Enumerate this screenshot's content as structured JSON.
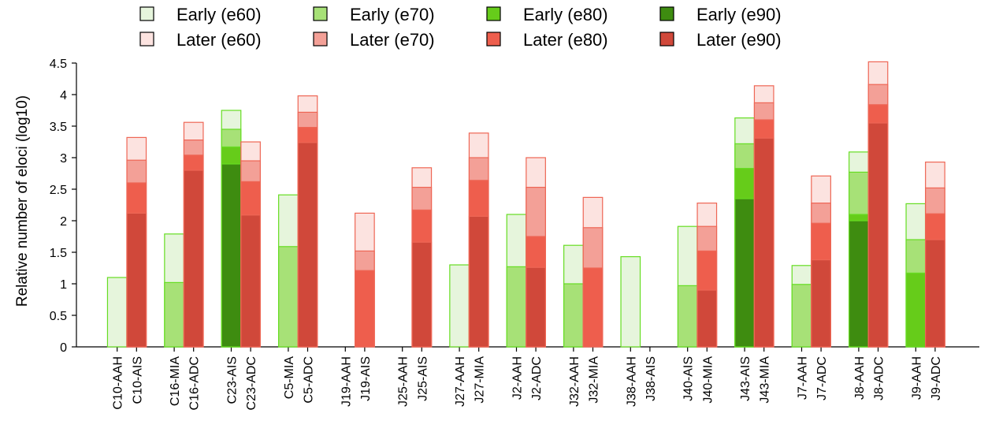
{
  "chart_data": {
    "type": "bar",
    "stacked": "overlapping cumulative thresholds, drawn back-to-front (e60 tallest behind)",
    "ylabel": "Relative number of eloci (log10)",
    "ylim": [
      0,
      4.5
    ],
    "yticks": [
      "0",
      "0.5",
      "1",
      "1.5",
      "2",
      "2.5",
      "3",
      "3.5",
      "4",
      "4.5"
    ],
    "legend": {
      "placement": "top",
      "entries": [
        {
          "label": "Early (e60)",
          "color": "#e6f5dc"
        },
        {
          "label": "Early (e70)",
          "color": "#a7e177"
        },
        {
          "label": "Early (e80)",
          "color": "#66cc1a"
        },
        {
          "label": "Early (e90)",
          "color": "#3e8c10"
        },
        {
          "label": "Later (e60)",
          "color": "#fce3e0"
        },
        {
          "label": "Later (e70)",
          "color": "#f3a097"
        },
        {
          "label": "Later (e80)",
          "color": "#ee5e4d"
        },
        {
          "label": "Later (e90)",
          "color": "#d0483a"
        }
      ]
    },
    "early_border_color": "#66dd22",
    "later_border_color": "#ee6655",
    "groups": [
      {
        "bars": [
          {
            "label": "C10-AAH",
            "kind": "early",
            "e60": 1.1,
            "e70": null,
            "e80": null,
            "e90": null
          },
          {
            "label": "C10-AIS",
            "kind": "later",
            "e60": 3.32,
            "e70": 2.96,
            "e80": 2.6,
            "e90": 2.12
          }
        ]
      },
      {
        "bars": [
          {
            "label": "C16-MIA",
            "kind": "early",
            "e60": 1.79,
            "e70": 1.02,
            "e80": null,
            "e90": null
          },
          {
            "label": "C16-ADC",
            "kind": "later",
            "e60": 3.56,
            "e70": 3.28,
            "e80": 3.04,
            "e90": 2.8
          }
        ]
      },
      {
        "bars": [
          {
            "label": "C23-AIS",
            "kind": "early",
            "e60": 3.75,
            "e70": 3.45,
            "e80": 3.17,
            "e90": 2.9
          },
          {
            "label": "C23-ADC",
            "kind": "later",
            "e60": 3.25,
            "e70": 2.95,
            "e80": 2.62,
            "e90": 2.09
          }
        ]
      },
      {
        "bars": [
          {
            "label": "C5-MIA",
            "kind": "early",
            "e60": 2.41,
            "e70": 1.59,
            "e80": null,
            "e90": null
          },
          {
            "label": "C5-ADC",
            "kind": "later",
            "e60": 3.98,
            "e70": 3.72,
            "e80": 3.48,
            "e90": 3.24
          }
        ]
      },
      {
        "bars": [
          {
            "label": "J19-AAH",
            "kind": "early",
            "e60": null,
            "e70": null,
            "e80": null,
            "e90": null
          },
          {
            "label": "J19-AIS",
            "kind": "later",
            "e60": 2.12,
            "e70": 1.52,
            "e80": 1.21,
            "e90": null
          }
        ]
      },
      {
        "bars": [
          {
            "label": "J25-AAH",
            "kind": "early",
            "e60": null,
            "e70": null,
            "e80": null,
            "e90": null
          },
          {
            "label": "J25-AIS",
            "kind": "later",
            "e60": 2.84,
            "e70": 2.53,
            "e80": 2.17,
            "e90": 1.66
          }
        ]
      },
      {
        "bars": [
          {
            "label": "J27-AAH",
            "kind": "early",
            "e60": 1.3,
            "e70": null,
            "e80": null,
            "e90": null
          },
          {
            "label": "J27-MIA",
            "kind": "later",
            "e60": 3.39,
            "e70": 3.0,
            "e80": 2.64,
            "e90": 2.07
          }
        ]
      },
      {
        "bars": [
          {
            "label": "J2-AAH",
            "kind": "early",
            "e60": 2.1,
            "e70": 1.27,
            "e80": null,
            "e90": null
          },
          {
            "label": "J2-ADC",
            "kind": "later",
            "e60": 3.0,
            "e70": 2.53,
            "e80": 1.75,
            "e90": 1.26
          }
        ]
      },
      {
        "bars": [
          {
            "label": "J32-AAH",
            "kind": "early",
            "e60": 1.61,
            "e70": 1.0,
            "e80": null,
            "e90": null
          },
          {
            "label": "J32-MIA",
            "kind": "later",
            "e60": 2.37,
            "e70": 1.89,
            "e80": 1.25,
            "e90": null
          }
        ]
      },
      {
        "bars": [
          {
            "label": "J38-AAH",
            "kind": "early",
            "e60": 1.43,
            "e70": null,
            "e80": null,
            "e90": null
          },
          {
            "label": "J38-AIS",
            "kind": "later",
            "e60": null,
            "e70": null,
            "e80": null,
            "e90": null
          }
        ]
      },
      {
        "bars": [
          {
            "label": "J40-AIS",
            "kind": "early",
            "e60": 1.91,
            "e70": 0.97,
            "e80": null,
            "e90": null
          },
          {
            "label": "J40-MIA",
            "kind": "later",
            "e60": 2.28,
            "e70": 1.91,
            "e80": 1.52,
            "e90": 0.9
          }
        ]
      },
      {
        "bars": [
          {
            "label": "J43-AIS",
            "kind": "early",
            "e60": 3.63,
            "e70": 3.22,
            "e80": 2.83,
            "e90": 2.35
          },
          {
            "label": "J43-MIA",
            "kind": "later",
            "e60": 4.14,
            "e70": 3.87,
            "e80": 3.6,
            "e90": 3.31
          }
        ]
      },
      {
        "bars": [
          {
            "label": "J7-AAH",
            "kind": "early",
            "e60": 1.29,
            "e70": 0.99,
            "e80": null,
            "e90": null
          },
          {
            "label": "J7-ADC",
            "kind": "later",
            "e60": 2.71,
            "e70": 2.28,
            "e80": 1.96,
            "e90": 1.38
          }
        ]
      },
      {
        "bars": [
          {
            "label": "J8-AAH",
            "kind": "early",
            "e60": 3.09,
            "e70": 2.77,
            "e80": 2.1,
            "e90": 2.0
          },
          {
            "label": "J8-ADC",
            "kind": "later",
            "e60": 4.52,
            "e70": 4.16,
            "e80": 3.84,
            "e90": 3.55
          }
        ]
      },
      {
        "bars": [
          {
            "label": "J9-AAH",
            "kind": "early",
            "e60": 2.27,
            "e70": 1.7,
            "e80": 1.17,
            "e90": null
          },
          {
            "label": "J9-ADC",
            "kind": "later",
            "e60": 2.93,
            "e70": 2.52,
            "e80": 2.11,
            "e90": 1.7
          }
        ]
      }
    ]
  }
}
